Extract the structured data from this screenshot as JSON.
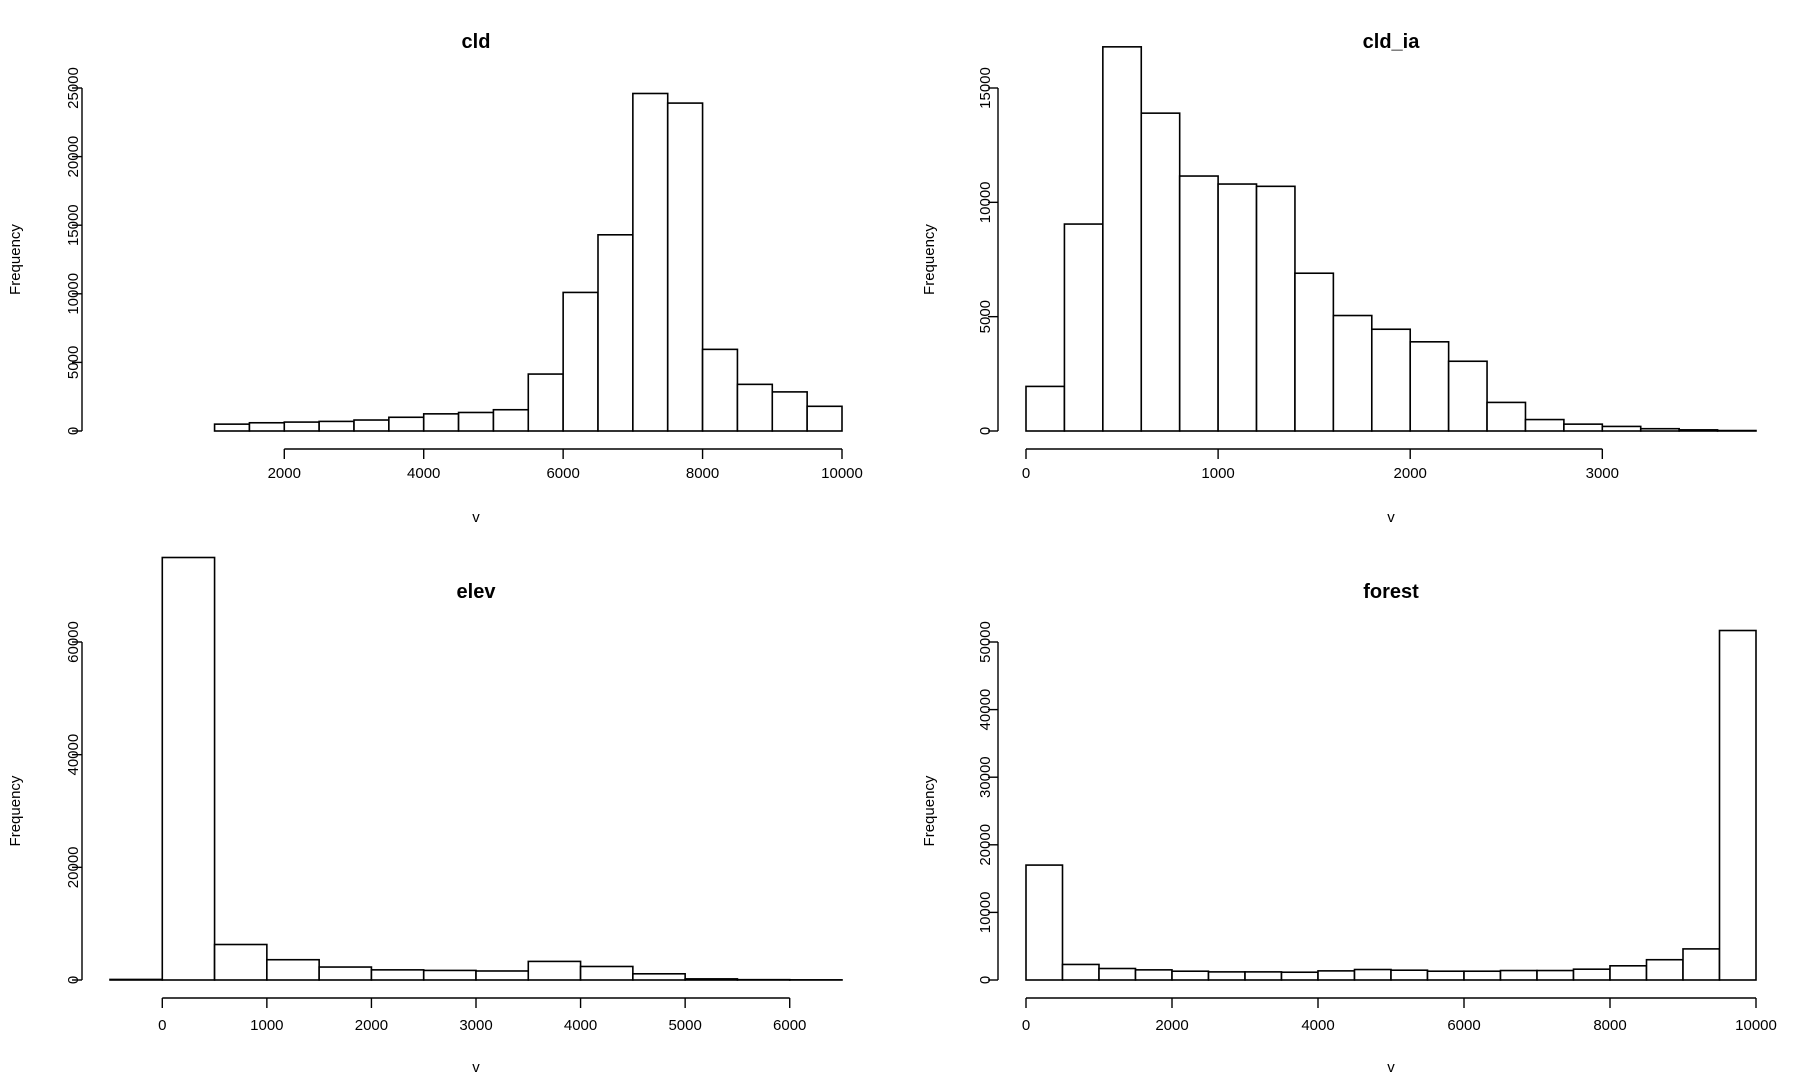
{
  "chart_data": [
    {
      "type": "bar",
      "title": "cld",
      "xlabel": "v",
      "ylabel": "Frequency",
      "xlim": [
        -500,
        10000
      ],
      "ylim": [
        0,
        25000
      ],
      "xticks": [
        2000,
        4000,
        6000,
        8000,
        10000
      ],
      "yticks": [
        0,
        5000,
        10000,
        15000,
        20000,
        25000
      ],
      "bin_width": 500,
      "bins_start": [
        1000,
        1500,
        2000,
        2500,
        3000,
        3500,
        4000,
        4500,
        5000,
        5500,
        6000,
        6500,
        7000,
        7500,
        8000,
        8500,
        9000,
        9500
      ],
      "values": [
        500,
        600,
        650,
        700,
        800,
        1000,
        1250,
        1350,
        1550,
        4150,
        10100,
        14300,
        24600,
        23900,
        5950,
        3400,
        2850,
        1800
      ]
    },
    {
      "type": "bar",
      "title": "cld_ia",
      "xlabel": "v",
      "ylabel": "Frequency",
      "xlim": [
        0,
        3800
      ],
      "ylim": [
        0,
        15000
      ],
      "xticks": [
        0,
        1000,
        2000,
        3000
      ],
      "yticks": [
        0,
        5000,
        10000,
        15000
      ],
      "bin_width": 200,
      "bins_start": [
        0,
        200,
        400,
        600,
        800,
        1000,
        1200,
        1400,
        1600,
        1800,
        2000,
        2200,
        2400,
        2600,
        2800,
        3000,
        3200,
        3400,
        3600
      ],
      "values": [
        1950,
        9050,
        16800,
        13900,
        11150,
        10800,
        10700,
        6900,
        5050,
        4450,
        3900,
        3050,
        1250,
        500,
        300,
        200,
        100,
        50,
        20
      ]
    },
    {
      "type": "bar",
      "title": "elev",
      "xlabel": "v",
      "ylabel": "Frequency",
      "xlim": [
        -500,
        6500
      ],
      "ylim": [
        0,
        60000
      ],
      "xticks": [
        0,
        1000,
        2000,
        3000,
        4000,
        5000,
        6000
      ],
      "yticks": [
        0,
        20000,
        40000,
        60000
      ],
      "bin_width": 500,
      "bins_start": [
        -500,
        0,
        500,
        1000,
        1500,
        2000,
        2500,
        3000,
        3500,
        4000,
        4500,
        5000,
        5500,
        6000
      ],
      "values": [
        100,
        75000,
        6300,
        3600,
        2300,
        1800,
        1700,
        1600,
        3300,
        2400,
        1100,
        200,
        60,
        30
      ]
    },
    {
      "type": "bar",
      "title": "forest",
      "xlabel": "v",
      "ylabel": "Frequency",
      "xlim": [
        0,
        10000
      ],
      "ylim": [
        0,
        50000
      ],
      "xticks": [
        0,
        2000,
        4000,
        6000,
        8000,
        10000
      ],
      "yticks": [
        0,
        10000,
        20000,
        30000,
        40000,
        50000
      ],
      "bin_width": 500,
      "bins_start": [
        0,
        500,
        1000,
        1500,
        2000,
        2500,
        3000,
        3500,
        4000,
        4500,
        5000,
        5500,
        6000,
        6500,
        7000,
        7500,
        8000,
        8500,
        9000,
        9500
      ],
      "values": [
        17000,
        2300,
        1700,
        1500,
        1300,
        1200,
        1200,
        1150,
        1350,
        1550,
        1450,
        1300,
        1300,
        1400,
        1400,
        1600,
        2100,
        3000,
        4600,
        51700
      ]
    }
  ]
}
